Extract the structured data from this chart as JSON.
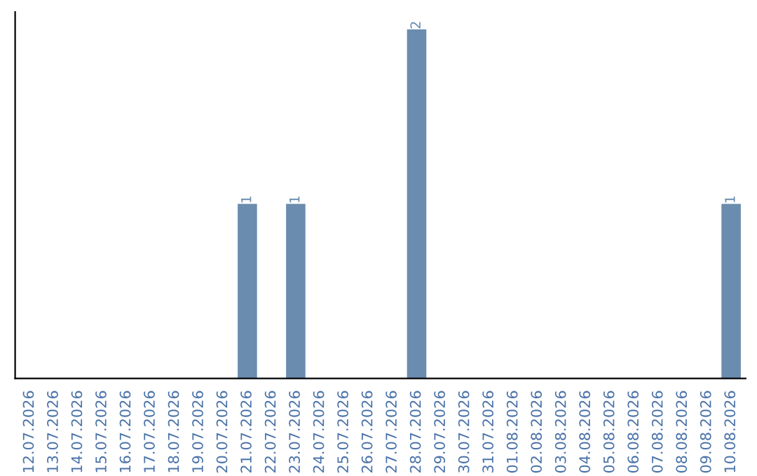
{
  "chart_data": {
    "type": "bar",
    "categories": [
      "12.07.2026",
      "13.07.2026",
      "14.07.2026",
      "15.07.2026",
      "16.07.2026",
      "17.07.2026",
      "18.07.2026",
      "19.07.2026",
      "20.07.2026",
      "21.07.2026",
      "22.07.2026",
      "23.07.2026",
      "24.07.2026",
      "25.07.2026",
      "26.07.2026",
      "27.07.2026",
      "28.07.2026",
      "29.07.2026",
      "30.07.2026",
      "31.07.2026",
      "01.08.2026",
      "02.08.2026",
      "03.08.2026",
      "04.08.2026",
      "05.08.2026",
      "06.08.2026",
      "07.08.2026",
      "08.08.2026",
      "09.08.2026",
      "10.08.2026"
    ],
    "values": [
      0,
      0,
      0,
      0,
      0,
      0,
      0,
      0,
      0,
      1,
      0,
      1,
      0,
      0,
      0,
      0,
      2,
      0,
      0,
      0,
      0,
      0,
      0,
      0,
      0,
      0,
      0,
      0,
      0,
      1
    ],
    "value_labels": [
      null,
      null,
      null,
      null,
      null,
      null,
      null,
      null,
      null,
      "1",
      null,
      "1",
      null,
      null,
      null,
      null,
      "2",
      null,
      null,
      null,
      null,
      null,
      null,
      null,
      null,
      null,
      null,
      null,
      null,
      "1"
    ],
    "color": "#6a8caf",
    "tick_labels": "x",
    "grid": false,
    "legend": false
  }
}
